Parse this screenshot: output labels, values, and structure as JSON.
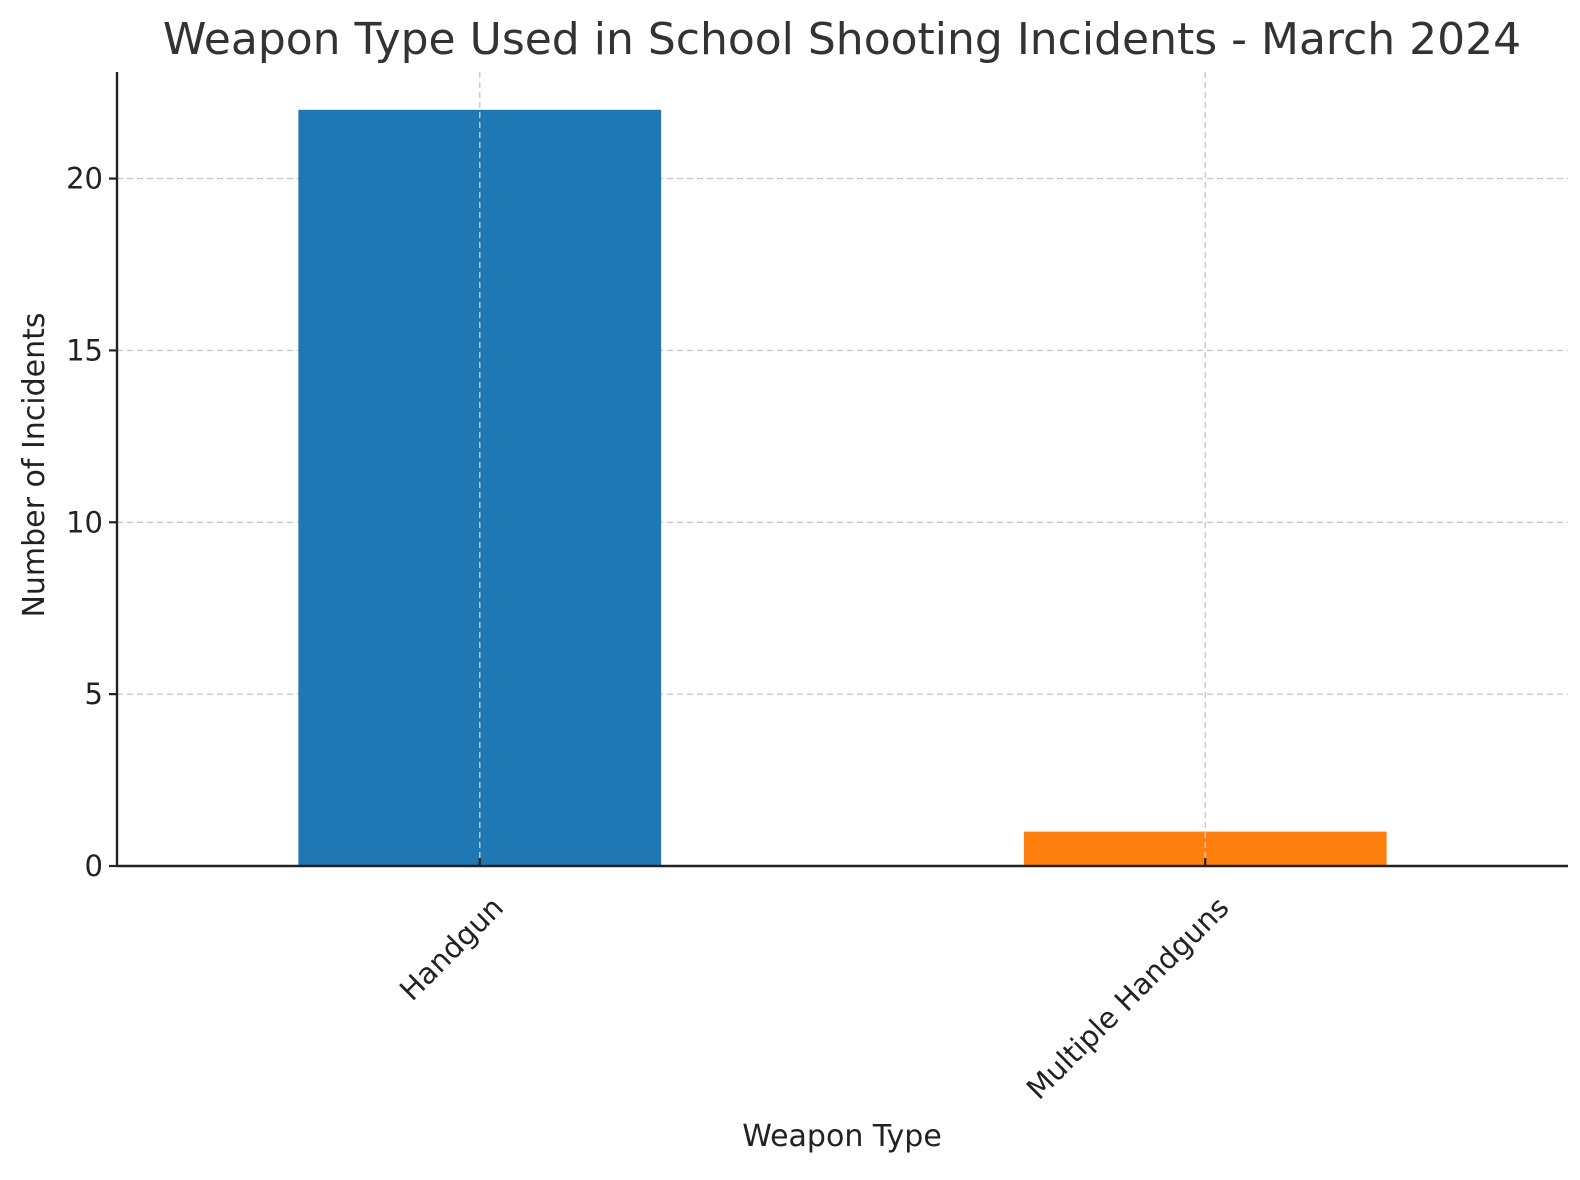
{
  "chart_data": {
    "type": "bar",
    "title": "Weapon Type Used in School Shooting Incidents - March 2024",
    "xlabel": "Weapon Type",
    "ylabel": "Number of Incidents",
    "categories": [
      "Handgun",
      "Multiple Handguns"
    ],
    "values": [
      22,
      1
    ],
    "colors": [
      "#1f77b4",
      "#ff7f0e"
    ],
    "ylim": [
      0,
      23.1
    ],
    "yticks": [
      0,
      5,
      10,
      15,
      20
    ],
    "grid": true,
    "legend": "none"
  }
}
